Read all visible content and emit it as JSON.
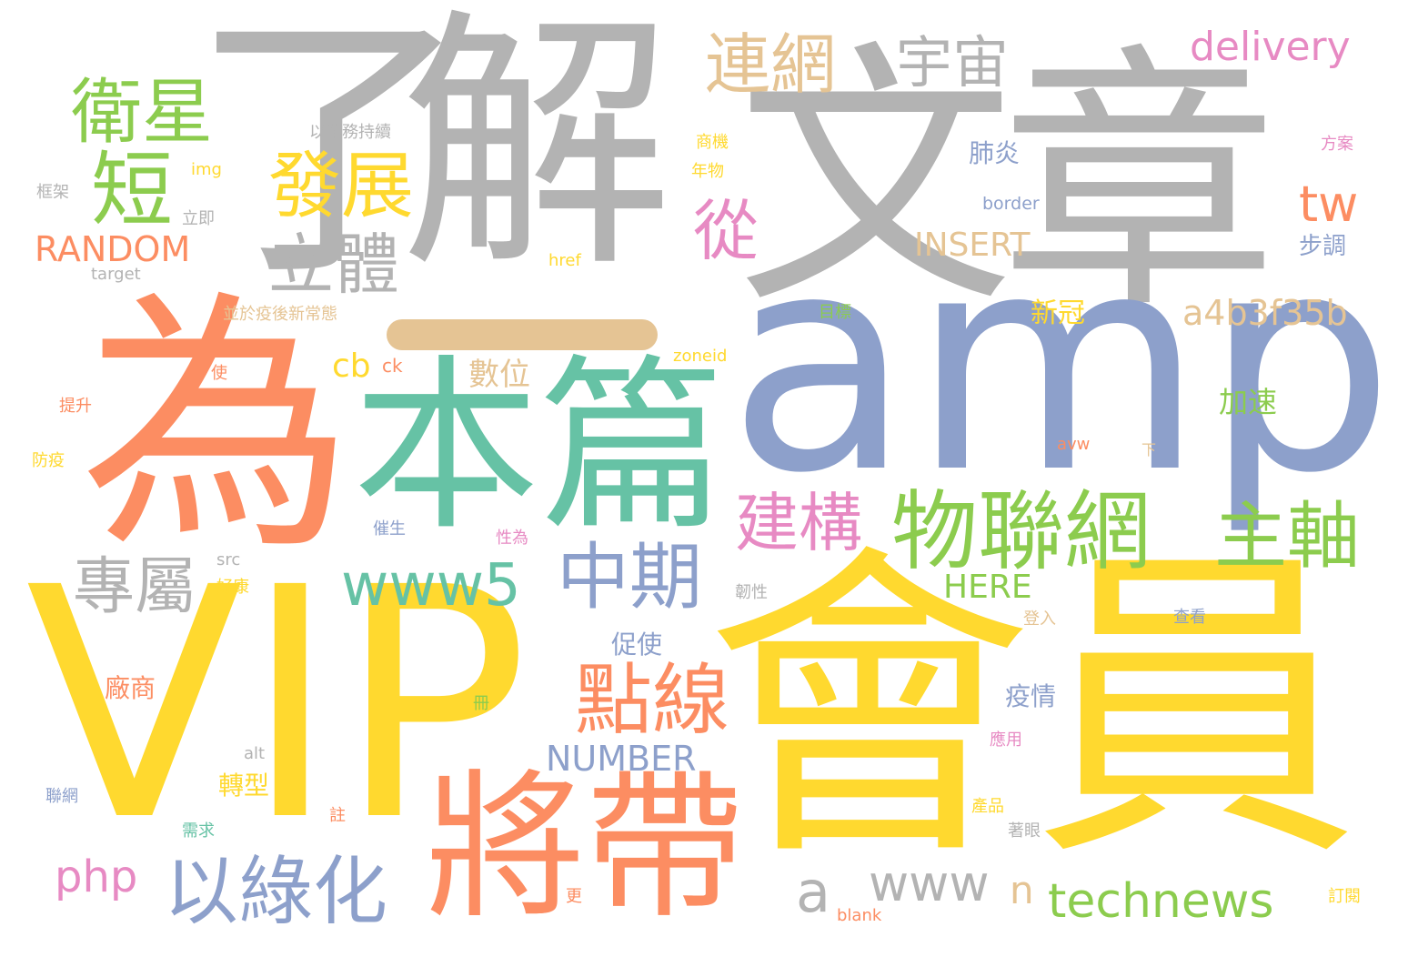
{
  "words": [
    "了",
    "解",
    "文",
    "章",
    "為",
    "amp",
    "本篇",
    "VIP",
    "會員",
    "將帶",
    "物聯網",
    "主軸",
    "建構",
    "中期",
    "點線",
    "www5",
    "以綠化",
    "專屬",
    "立體",
    "發展",
    "短",
    "衛星",
    "連網",
    "宇宙",
    "從",
    "delivery",
    "tw",
    "RANDOM",
    "INSERT",
    "a4b3f35b",
    "cb",
    "ck",
    "數位",
    "加速",
    "新冠",
    "肺炎",
    "步調",
    "border",
    "方案",
    "商機",
    "年物",
    "以業務持續",
    "框架",
    "img",
    "立即",
    "target",
    "href",
    "並於疫後新常態",
    "目標",
    "zoneid",
    "使",
    "提升",
    "防疫",
    "avw",
    "下",
    "催生",
    "性為",
    "src",
    "好康",
    "韌性",
    "HERE",
    "php",
    "a",
    "www",
    "n",
    "technews",
    "NUMBER",
    "轉型",
    "促使",
    "廠商",
    "疫情",
    "應用",
    "alt",
    "聯網",
    "需求",
    "註",
    "冊",
    "產品",
    "著眼",
    "更",
    "blank",
    "訂閱",
    "登入",
    "查看"
  ],
  "palette": {
    "gray": "#b3b3b3",
    "orange": "#fc8d62",
    "green": "#8ccc4e",
    "teal": "#66c2a5",
    "blue": "#8da0cb",
    "yellow": "#ffd92f",
    "tan": "#e5c494",
    "pink": "#e78ac3"
  }
}
